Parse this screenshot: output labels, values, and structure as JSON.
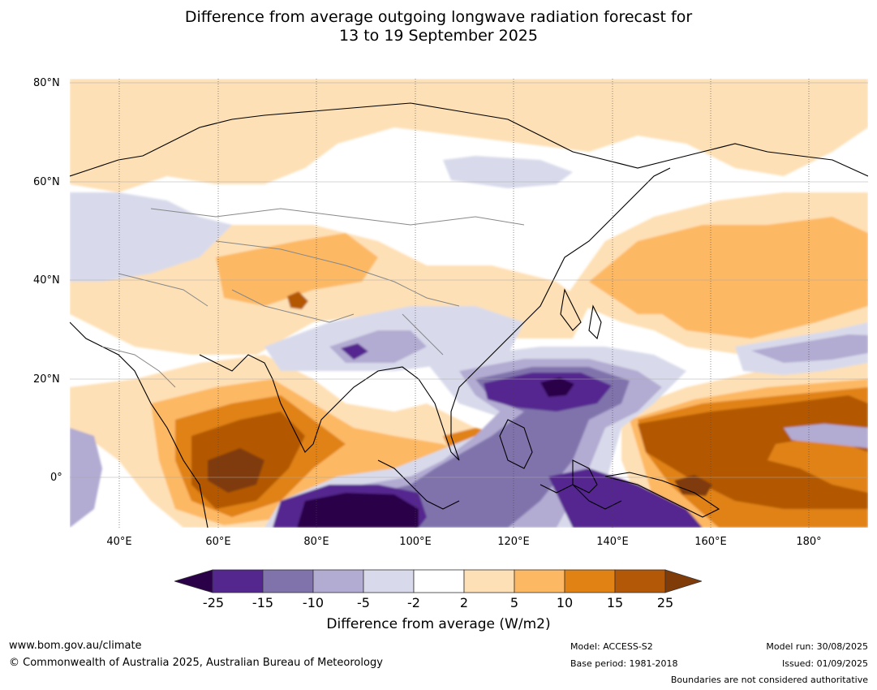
{
  "title_line1": "Difference from average outgoing longwave radiation forecast for",
  "title_line2": "13 to 19 September 2025",
  "lat_labels": [
    "80°N",
    "60°N",
    "40°N",
    "20°N",
    "0°"
  ],
  "lon_labels": [
    "40°E",
    "60°E",
    "80°E",
    "100°E",
    "120°E",
    "140°E",
    "160°E",
    "180°"
  ],
  "colorbar": {
    "ticks": [
      "-25",
      "-15",
      "-10",
      "-5",
      "-2",
      "2",
      "5",
      "10",
      "15",
      "25"
    ],
    "label": "Difference from average (W/m2)",
    "colors": [
      "#2a0048",
      "#54278f",
      "#8073ac",
      "#b2abd2",
      "#d8daeb",
      "#ffffff",
      "#fee0b6",
      "#fdb863",
      "#e08214",
      "#b35806",
      "#7f3b08"
    ]
  },
  "footer": {
    "website": "www.bom.gov.au/climate",
    "copyright": "© Commonwealth of Australia 2025, Australian Bureau of Meteorology",
    "model": "Model: ACCESS-S2",
    "base_period": "Base period: 1981-2018",
    "model_run": "Model run: 30/08/2025",
    "issued": "Issued: 01/09/2025",
    "disclaimer": "Boundaries are not considered authoritative"
  }
}
